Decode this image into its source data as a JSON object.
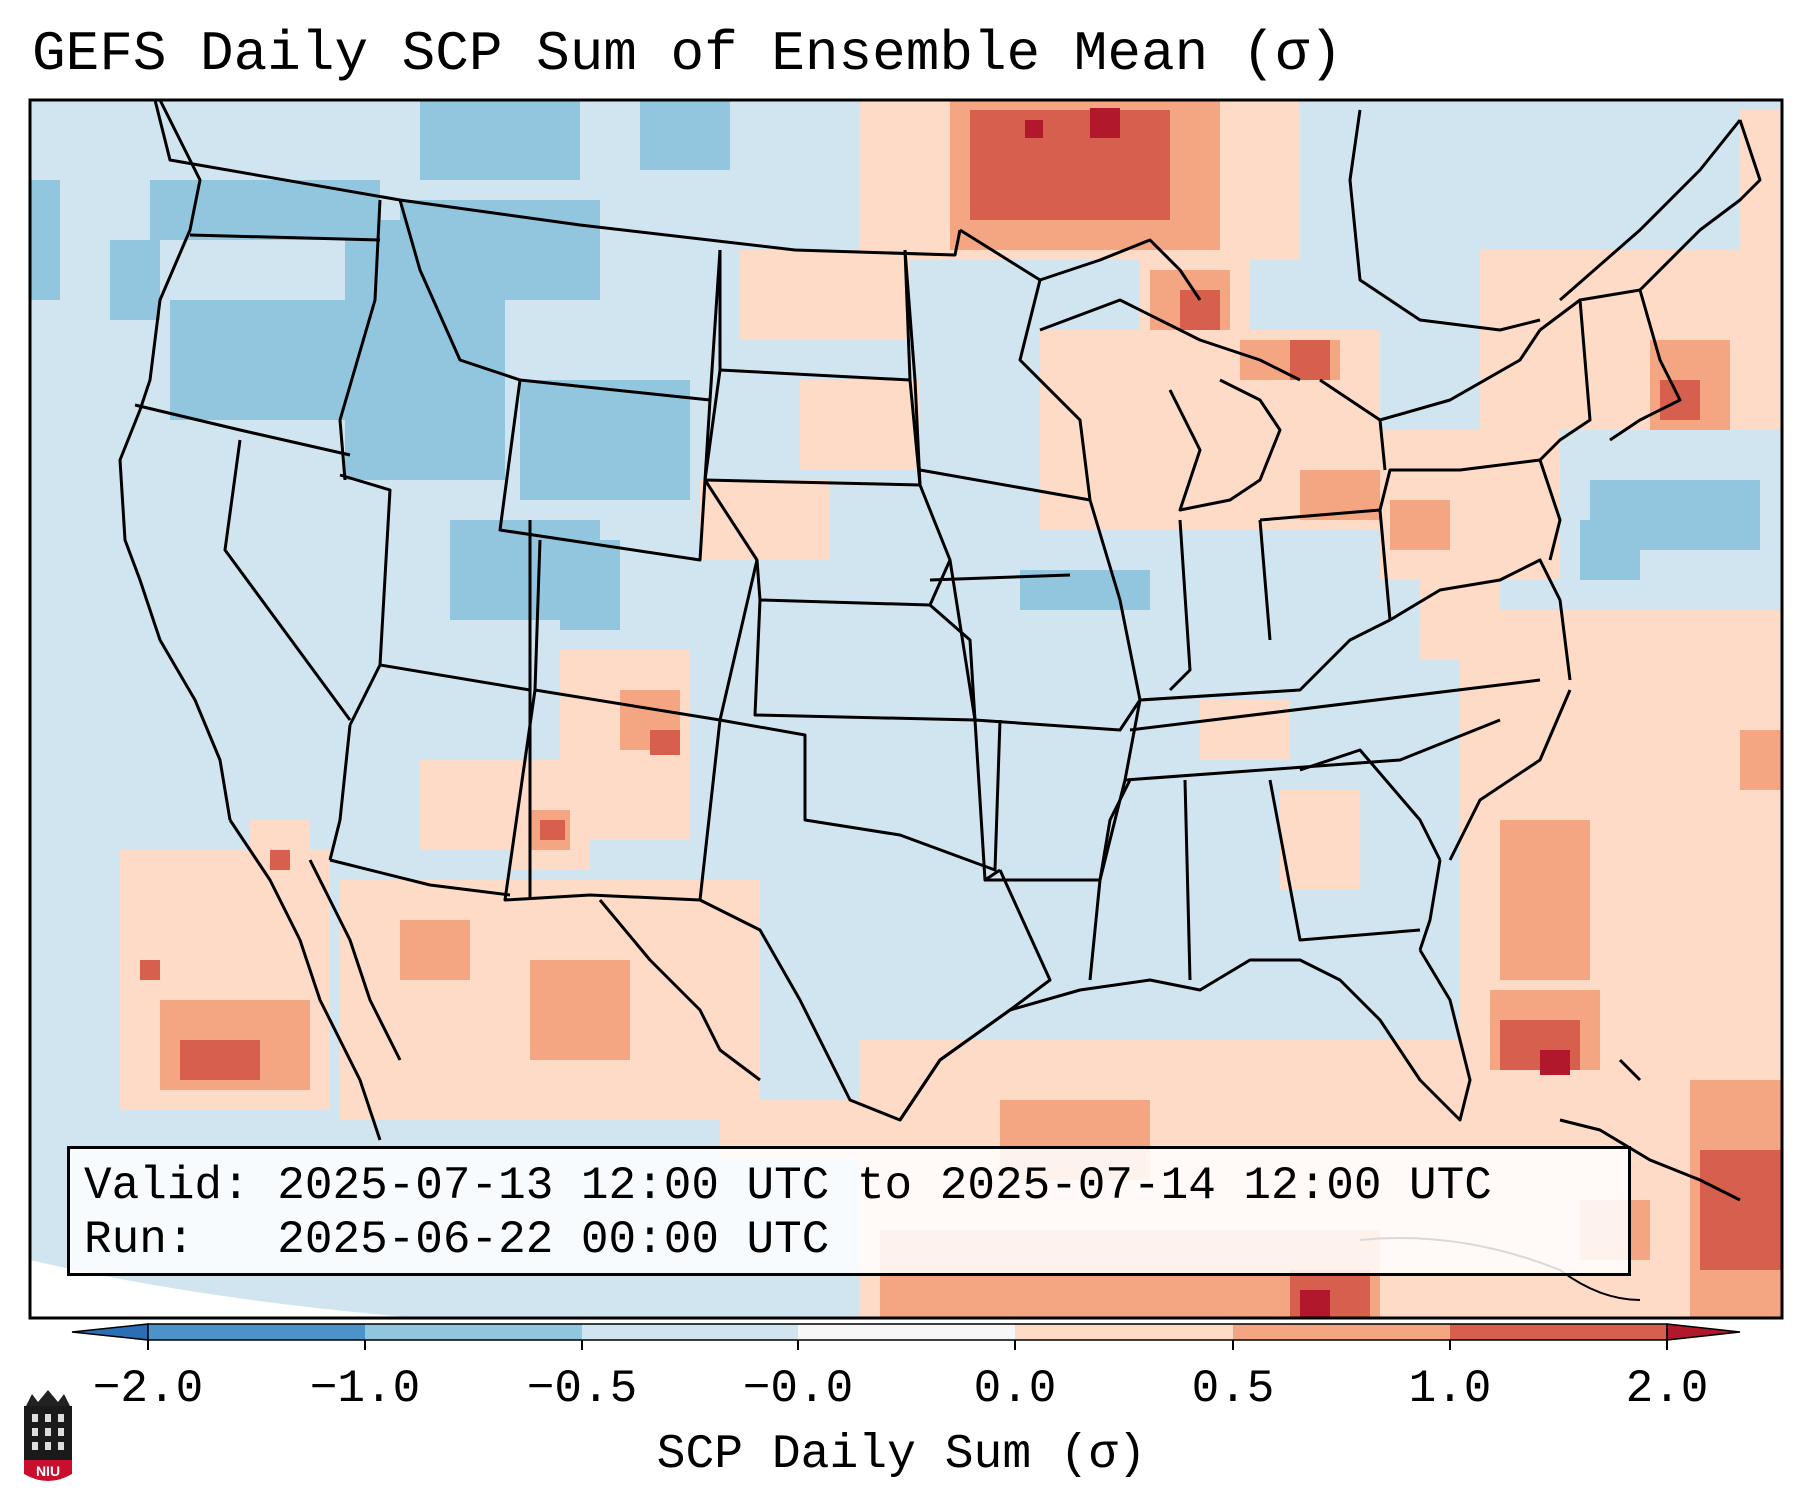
{
  "title": "GEFS Daily SCP Sum of Ensemble Mean (σ)",
  "info": {
    "valid_label": "Valid:",
    "valid_value": "2025-07-13 12:00 UTC to 2025-07-14 12:00 UTC",
    "run_label": "Run:",
    "run_value": "2025-06-22 00:00 UTC"
  },
  "colorbar": {
    "label": "SCP Daily Sum (σ)",
    "ticks": [
      "−2.0",
      "−1.0",
      "−0.5",
      "−0.0",
      "0.0",
      "0.5",
      "1.0",
      "2.0"
    ],
    "colors": {
      "below_min": "#2a6fb5",
      "neg_2_to_1": "#4b93c8",
      "neg_1_to_05": "#92c5de",
      "neg_05_to_0": "#d1e5f0",
      "zero": "#f7f7f7",
      "pos_0_to_05": "#fddbc7",
      "pos_05_to_1": "#f4a582",
      "pos_1_to_2": "#d6604d",
      "above_max": "#b2182b"
    }
  },
  "map": {
    "region": "Continental United States",
    "background_color": "#d1e5f0",
    "outside_color": "#ffffff"
  },
  "logo": {
    "text": "NIU"
  }
}
